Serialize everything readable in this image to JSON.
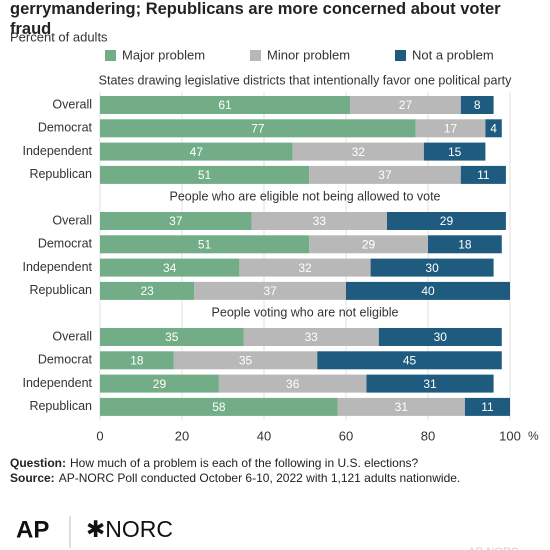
{
  "chart_data": {
    "type": "bar",
    "orientation": "horizontal",
    "stacked": true,
    "title": "Democrats are more concerned about voter suppression and gerrymandering; Republicans are more concerned about voter fraud",
    "subtitle": "Percent of adults",
    "series": [
      {
        "name": "Major problem",
        "color": "#72ad87",
        "values": [
          [
            61,
            77,
            47,
            51
          ],
          [
            37,
            51,
            34,
            23
          ],
          [
            35,
            18,
            29,
            58
          ]
        ]
      },
      {
        "name": "Minor problem",
        "color": "#b8b8b8",
        "values": [
          [
            27,
            17,
            32,
            37
          ],
          [
            33,
            29,
            32,
            37
          ],
          [
            33,
            35,
            36,
            31
          ]
        ]
      },
      {
        "name": "Not a problem",
        "color": "#1f5b7f",
        "values": [
          [
            8,
            4,
            15,
            11
          ],
          [
            29,
            18,
            30,
            40
          ],
          [
            30,
            45,
            31,
            11
          ]
        ]
      }
    ],
    "panels": [
      {
        "title": "States drawing legislative districts that intentionally favor one political party",
        "categories": [
          "Overall",
          "Democrat",
          "Independent",
          "Republican"
        ]
      },
      {
        "title": "People who are eligible not being allowed to vote",
        "categories": [
          "Overall",
          "Democrat",
          "Independent",
          "Republican"
        ]
      },
      {
        "title": "People voting who are not eligible",
        "categories": [
          "Overall",
          "Democrat",
          "Independent",
          "Republican"
        ]
      }
    ],
    "xlim": [
      0,
      100
    ],
    "xticks": [
      0,
      20,
      40,
      60,
      80,
      100
    ],
    "xlabel": "%",
    "grid": true,
    "notes": [
      {
        "label": "Question:",
        "text": "How much of a problem is each of the following in U.S. elections?"
      },
      {
        "label": "Source:",
        "text": "AP-NORC Poll conducted October 6-10, 2022 with 1,121 adults nationwide."
      }
    ],
    "logos": {
      "left": "AP",
      "right": "✱NORC",
      "corner": "AP-NORC"
    }
  }
}
